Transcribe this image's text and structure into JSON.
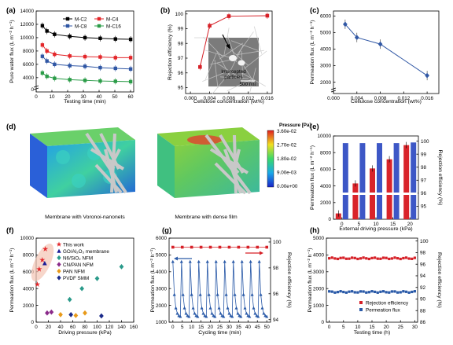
{
  "panels": {
    "a": {
      "letter": "(a)"
    },
    "b": {
      "letter": "(b)",
      "inset_text": "Intercepted particles",
      "scale_bar": "500 nm"
    },
    "c": {
      "letter": "(c)"
    },
    "d": {
      "letter": "(d)",
      "colorbar_title": "Pressure [Pa]",
      "colorbar_ticks": [
        "3.60e-02",
        "2.70e-02",
        "1.80e-02",
        "9.00e-03",
        "0.00e+00"
      ],
      "caption_left": "Membrane with Voronoi-nanonets",
      "caption_right": "Membrane with dense film"
    },
    "e": {
      "letter": "(e)"
    },
    "f": {
      "letter": "(f)"
    },
    "g": {
      "letter": "(g)"
    },
    "h": {
      "letter": "(h)"
    }
  },
  "chart_data": [
    {
      "panel": "a",
      "type": "line",
      "xlabel": "Testing time (min)",
      "ylabel": "Pure water flux (L m⁻² h⁻¹)",
      "xlim": [
        0,
        62
      ],
      "ylim": [
        0,
        14000
      ],
      "axis_break": true,
      "xticks": [
        0,
        10,
        20,
        30,
        40,
        50,
        60
      ],
      "yticks": [
        4000,
        6000,
        8000,
        10000,
        12000,
        14000
      ],
      "x": [
        2,
        5,
        10,
        20,
        30,
        40,
        50,
        60
      ],
      "series": [
        {
          "name": "M-C2",
          "color": "#000000",
          "marker": "square",
          "values": [
            11800,
            11000,
            10500,
            10200,
            10000,
            9900,
            9800,
            9750
          ]
        },
        {
          "name": "M-C4",
          "color": "#e3262a",
          "marker": "square",
          "values": [
            8900,
            8000,
            7500,
            7250,
            7150,
            7100,
            7000,
            7000
          ]
        },
        {
          "name": "M-C8",
          "color": "#2f56a4",
          "marker": "square",
          "values": [
            7200,
            6500,
            6000,
            5800,
            5700,
            5500,
            5400,
            5300
          ]
        },
        {
          "name": "M-C16",
          "color": "#2b9c48",
          "marker": "square",
          "values": [
            4700,
            4200,
            3900,
            3700,
            3600,
            3500,
            3450,
            3400
          ]
        }
      ]
    },
    {
      "panel": "b",
      "type": "line",
      "xlabel": "Cellulose concentration (wt%)",
      "ylabel": "Rejection efficiency (%)",
      "xlim": [
        -0.001,
        0.017
      ],
      "ylim": [
        94.6,
        100.2
      ],
      "xticks": [
        "0.000",
        "0.004",
        "0.008",
        "0.012",
        "0.016"
      ],
      "yticks": [
        95,
        96,
        97,
        98,
        99,
        100
      ],
      "x": [
        0.002,
        0.004,
        0.008,
        0.016
      ],
      "series": [
        {
          "name": "",
          "color": "#d62027",
          "values": [
            96.4,
            99.2,
            99.85,
            99.88
          ]
        }
      ]
    },
    {
      "panel": "c",
      "type": "line",
      "xlabel": "Cellulose concentration (wt%)",
      "ylabel": "Permeation flux (L m⁻² h⁻¹)",
      "xlim": [
        0,
        0.018
      ],
      "ylim": [
        1600,
        6300
      ],
      "axis_break": true,
      "xticks": [
        "0.000",
        "0.004",
        "0.008",
        "0.012",
        "0.016"
      ],
      "yticks": [
        2000,
        3000,
        4000,
        5000,
        6000
      ],
      "x": [
        0.002,
        0.004,
        0.008,
        0.016
      ],
      "series": [
        {
          "name": "",
          "color": "#3158a5",
          "values": [
            5500,
            4700,
            4300,
            2400
          ]
        }
      ]
    },
    {
      "panel": "e",
      "type": "bar",
      "xlabel": "External driving pressure (kPa)",
      "ylabel": "Permeation flux (L m⁻² h⁻¹)",
      "ylabel2": "Rejection efficiency (%)",
      "categories": [
        "0",
        "5",
        "10",
        "15",
        "20"
      ],
      "ylim": [
        0,
        10000
      ],
      "yticks": [
        0,
        2000,
        4000,
        6000,
        8000,
        10000
      ],
      "y2lim": [
        94,
        100.4
      ],
      "y2ticks": [
        95,
        96,
        97,
        98,
        99,
        100
      ],
      "series": [
        {
          "name": "",
          "color": "#d9242a",
          "values": [
            700,
            4300,
            6100,
            7200,
            8900
          ]
        },
        {
          "name": "",
          "color": "#3d57c6",
          "axis": "right",
          "values": [
            99.85,
            99.85,
            99.85,
            99.85,
            99.9
          ]
        }
      ]
    },
    {
      "panel": "f",
      "type": "scatter",
      "xlabel": "Driving pressure (kPa)",
      "ylabel": "Permeation flux (L m⁻² h⁻¹)",
      "xlim": [
        0,
        160
      ],
      "ylim": [
        0,
        10000
      ],
      "xticks": [
        0,
        20,
        40,
        60,
        80,
        100,
        120,
        140,
        160
      ],
      "yticks": [
        0,
        2000,
        4000,
        6000,
        8000,
        10000
      ],
      "legend": "top-left",
      "series": [
        {
          "name": "This work",
          "color": "#e3262a",
          "marker": "star",
          "points": [
            [
              2,
              4500
            ],
            [
              5,
              6300
            ],
            [
              10,
              7400
            ],
            [
              15,
              8700
            ]
          ]
        },
        {
          "name": "GO/Al₂O₃ membrane",
          "color": "#1b1b96",
          "marker": "triangle",
          "points": [
            [
              14,
              7000
            ]
          ]
        },
        {
          "name": "N6/SiO₂ NFM",
          "color": "#2a9a8a",
          "marker": "diamond",
          "points": [
            [
              55,
              2700
            ],
            [
              75,
              4000
            ],
            [
              100,
              5200
            ],
            [
              140,
              6600
            ]
          ]
        },
        {
          "name": "CN/PAN NFM",
          "color": "#8a2a8a",
          "marker": "diamond",
          "points": [
            [
              18,
              1100
            ],
            [
              25,
              1200
            ]
          ]
        },
        {
          "name": "PAN NFM",
          "color": "#e89a1a",
          "marker": "diamond",
          "points": [
            [
              40,
              900
            ],
            [
              65,
              800
            ],
            [
              80,
              1100
            ]
          ]
        },
        {
          "name": "PVDF SMM",
          "color": "#1a2a8a",
          "marker": "diamond",
          "points": [
            [
              57,
              900
            ],
            [
              107,
              750
            ]
          ]
        }
      ]
    },
    {
      "panel": "g",
      "type": "line",
      "xlabel": "Cycling time (min)",
      "ylabel": "Permeation flux (L m⁻² h⁻¹)",
      "ylabel2": "Rejection efficiency (%)",
      "xlim": [
        -2,
        52
      ],
      "ylim": [
        1000,
        6000
      ],
      "xticks": [
        0,
        5,
        10,
        15,
        20,
        25,
        30,
        35,
        40,
        45,
        50
      ],
      "yticks": [
        1000,
        2000,
        3000,
        4000,
        5000,
        6000
      ],
      "y2lim": [
        93.8,
        100.3
      ],
      "y2ticks": [
        94,
        96,
        98,
        100
      ],
      "series": [
        {
          "name": "",
          "color": "#2a5aa8",
          "marker": "triangle",
          "pattern": "cyclic",
          "peak": 4600,
          "base": 1300,
          "cycles": 11
        },
        {
          "name": "",
          "color": "#d62027",
          "marker": "square",
          "axis": "right",
          "x": [
            0,
            5,
            10,
            15,
            20,
            25,
            30,
            35,
            40,
            45,
            50
          ],
          "values": [
            99.6,
            99.6,
            99.6,
            99.6,
            99.6,
            99.6,
            99.6,
            99.6,
            99.6,
            99.6,
            99.6
          ]
        }
      ]
    },
    {
      "panel": "h",
      "type": "line",
      "xlabel": "Testing time (h)",
      "ylabel": "Permeation flux (L m⁻² h⁻¹)",
      "ylabel2": "Rejection efficiency (%)",
      "xlim": [
        -1,
        31
      ],
      "ylim": [
        0,
        5000
      ],
      "xticks": [
        0,
        5,
        10,
        15,
        20,
        25,
        30
      ],
      "yticks": [
        0,
        1000,
        2000,
        3000,
        4000,
        5000
      ],
      "y2lim": [
        86,
        100.5
      ],
      "y2ticks": [
        86,
        88,
        90,
        92,
        94,
        96,
        98,
        100
      ],
      "legend": "bottom-right",
      "series": [
        {
          "name": "Rejection efficiency",
          "color": "#d62027",
          "marker": "square",
          "values_level": 3800
        },
        {
          "name": "Permeation flux",
          "color": "#2a5aa8",
          "marker": "square",
          "values_level": 1800
        }
      ]
    }
  ]
}
